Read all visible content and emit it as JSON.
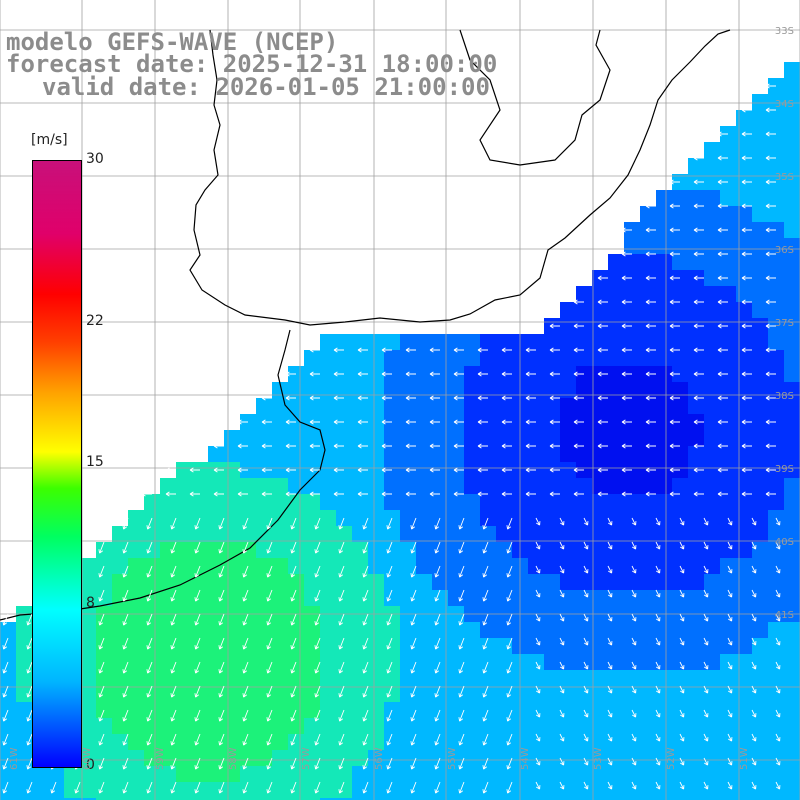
{
  "title": {
    "line1": "modelo GEFS-WAVE (NCEP)",
    "line2": "forecast date: 2025-12-31 18:00:00",
    "line3": "valid date: 2026-01-05 21:00:00"
  },
  "colorbar": {
    "unit": "[m/s]",
    "min": 0,
    "max": 30,
    "ticks": [
      {
        "label": "30",
        "value": 30
      },
      {
        "label": "22",
        "value": 22
      },
      {
        "label": "15",
        "value": 15
      },
      {
        "label": "8",
        "value": 8
      },
      {
        "label": "0",
        "value": 0
      }
    ]
  },
  "lat_labels": [
    "33S",
    "34S",
    "35S",
    "36S",
    "37S",
    "38S",
    "39S",
    "40S",
    "41S"
  ],
  "lon_labels": [
    "61W",
    "60W",
    "59W",
    "58W",
    "57W",
    "56W",
    "55W",
    "54W",
    "53W",
    "52W",
    "51W"
  ],
  "colors": {
    "land": "#ffffff",
    "grid": "#a0a0a0",
    "coast": "#000000",
    "arrow": "#ffffff",
    "title": "#8c8c8c"
  }
}
